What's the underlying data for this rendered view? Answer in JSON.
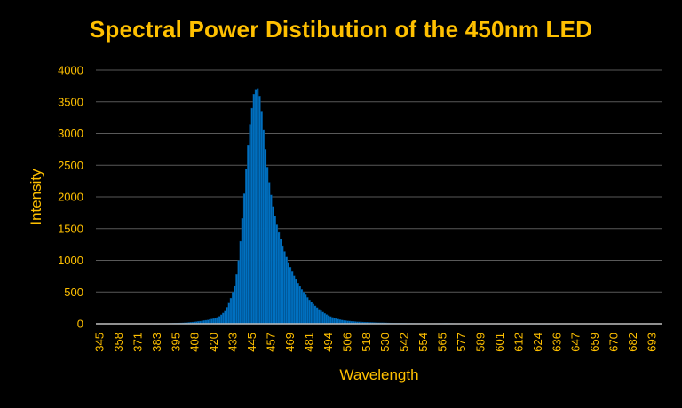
{
  "chart_data": {
    "type": "bar",
    "title": "Spectral Power Distibution of the 450nm LED",
    "xlabel": "Wavelength",
    "ylabel": "Intensity",
    "ylim": [
      0,
      4000
    ],
    "yticks": [
      0,
      500,
      1000,
      1500,
      2000,
      2500,
      3000,
      3500,
      4000
    ],
    "x_tick_labels": [
      "345",
      "358",
      "371",
      "383",
      "395",
      "408",
      "420",
      "433",
      "445",
      "457",
      "469",
      "481",
      "494",
      "506",
      "518",
      "530",
      "542",
      "554",
      "565",
      "577",
      "589",
      "601",
      "612",
      "624",
      "636",
      "647",
      "659",
      "670",
      "682",
      "693"
    ],
    "x_range": [
      345,
      700
    ],
    "grid": true,
    "legend": "none",
    "series": [
      {
        "x": [
          345,
          350,
          355,
          360,
          365,
          370,
          375,
          380,
          385,
          390,
          395,
          400,
          405,
          410,
          415,
          420,
          422,
          424,
          426,
          428,
          430,
          432,
          434,
          436,
          438,
          440,
          442,
          444,
          446,
          448,
          450,
          452,
          454,
          456,
          458,
          460,
          462,
          464,
          466,
          468,
          470,
          472,
          474,
          476,
          478,
          480,
          482,
          484,
          486,
          488,
          490,
          492,
          494,
          496,
          498,
          500,
          505,
          510,
          515,
          520,
          525,
          530,
          535,
          540,
          545,
          550,
          555,
          560,
          565,
          570,
          575,
          580,
          590,
          600,
          620,
          640,
          660,
          680,
          700
        ],
        "values": [
          0,
          0,
          0,
          0,
          0,
          0,
          0,
          0,
          2,
          5,
          10,
          15,
          25,
          40,
          60,
          90,
          110,
          150,
          200,
          300,
          430,
          600,
          900,
          1400,
          2050,
          2700,
          3250,
          3620,
          3750,
          3550,
          3050,
          2550,
          2150,
          1850,
          1600,
          1400,
          1230,
          1080,
          940,
          820,
          720,
          620,
          540,
          470,
          400,
          340,
          290,
          245,
          205,
          170,
          140,
          115,
          95,
          80,
          65,
          55,
          40,
          30,
          24,
          20,
          16,
          12,
          10,
          8,
          7,
          6,
          5,
          6,
          8,
          5,
          4,
          3,
          2,
          2,
          1,
          0,
          0,
          0,
          0
        ]
      }
    ],
    "colors": {
      "background": "#000000",
      "text": "#FFC000",
      "bar_fill": "#0070C0",
      "bar_edge": "#003F70",
      "gridline": "#595959",
      "axis_line": "#BFBFBF"
    }
  }
}
